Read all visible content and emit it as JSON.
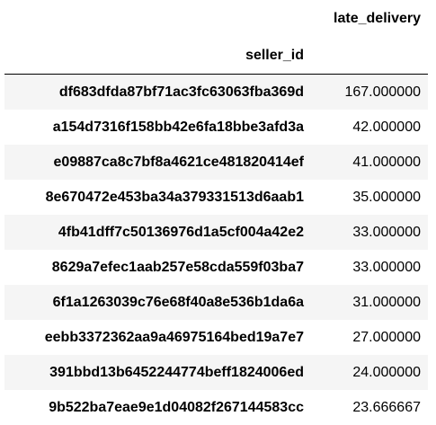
{
  "dataframe": {
    "column_header": "late_delivery",
    "index_name": "seller_id",
    "rows": [
      {
        "seller_id": "df683dfda87bf71ac3fc63063fba369d",
        "late_delivery": "167.000000"
      },
      {
        "seller_id": "a154d7316f158bb42e6fa18bbe3afd3a",
        "late_delivery": "42.000000"
      },
      {
        "seller_id": "e09887ca8c7bf8a4621ce481820414ef",
        "late_delivery": "41.000000"
      },
      {
        "seller_id": "8e670472e453ba34a379331513d6aab1",
        "late_delivery": "35.000000"
      },
      {
        "seller_id": "4fb41dff7c50136976d1a5cf004a42e2",
        "late_delivery": "33.000000"
      },
      {
        "seller_id": "8629a7efec1aab257e58cda559f03ba7",
        "late_delivery": "33.000000"
      },
      {
        "seller_id": "6f1a1263039c76e68f40a8e536b1da6a",
        "late_delivery": "31.000000"
      },
      {
        "seller_id": "eebb3372362aa9a46975164bed19a7e7",
        "late_delivery": "27.000000"
      },
      {
        "seller_id": "391bbd13b6452244774beff1824006ed",
        "late_delivery": "24.000000"
      },
      {
        "seller_id": "9b522ba7eae9e1d04082f267144583cc",
        "late_delivery": "23.666667"
      }
    ]
  }
}
